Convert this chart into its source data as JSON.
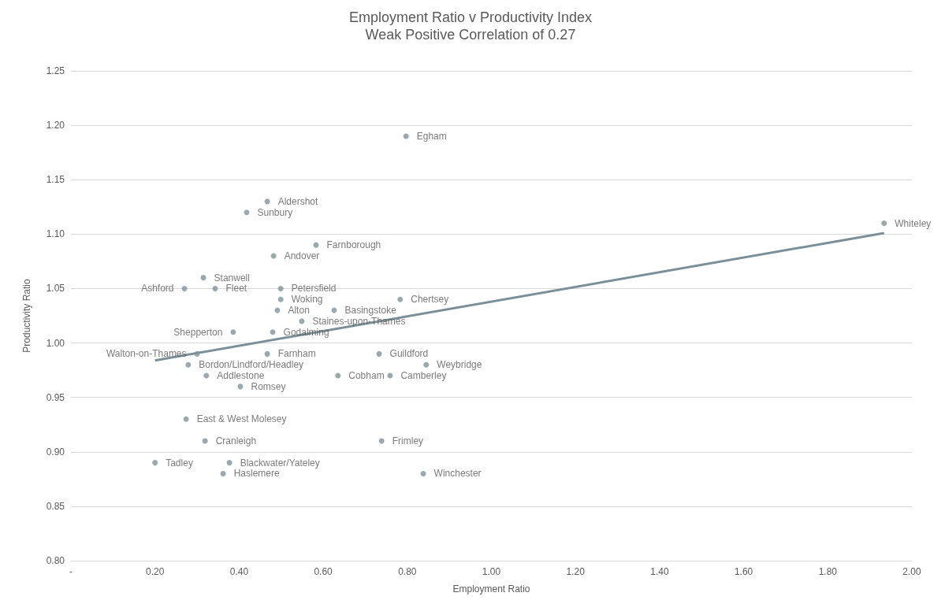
{
  "chart_data": {
    "type": "scatter",
    "title": "Employment Ratio v Productivity Index",
    "subtitle": "Weak Positive Correlation of 0.27",
    "xlabel": "Employment Ratio",
    "ylabel": "Productivity Ratio",
    "xlim": [
      0,
      2
    ],
    "xticks": [
      {
        "value": 0,
        "label": "-"
      },
      {
        "value": 0.2,
        "label": "0.20"
      },
      {
        "value": 0.4,
        "label": "0.40"
      },
      {
        "value": 0.6,
        "label": "0.60"
      },
      {
        "value": 0.8,
        "label": "0.80"
      },
      {
        "value": 1.0,
        "label": "1.00"
      },
      {
        "value": 1.2,
        "label": "1.20"
      },
      {
        "value": 1.4,
        "label": "1.40"
      },
      {
        "value": 1.6,
        "label": "1.60"
      },
      {
        "value": 1.8,
        "label": "1.80"
      },
      {
        "value": 2.0,
        "label": "2.00"
      }
    ],
    "ylim": [
      0.8,
      1.25
    ],
    "yticks": [
      {
        "value": 0.8,
        "label": "0.80"
      },
      0.85,
      {
        "value": 0.9,
        "label": "0.90"
      },
      0.95,
      {
        "value": 1.0,
        "label": "1.00"
      },
      1.05,
      {
        "value": 1.1,
        "label": "1.10"
      },
      1.15,
      {
        "value": 1.2,
        "label": "1.20"
      },
      1.25
    ],
    "grid": "y",
    "marker": "circle",
    "series": [
      {
        "color": "#7f939b",
        "x": [
          0.797,
          0.467,
          0.418,
          0.583,
          0.482,
          1.934,
          0.315,
          0.27,
          0.343,
          0.499,
          0.499,
          0.783,
          0.491,
          0.626,
          0.549,
          0.386,
          0.48,
          0.3,
          0.467,
          0.733,
          0.279,
          0.845,
          0.322,
          0.635,
          0.759,
          0.403,
          0.274,
          0.319,
          0.739,
          0.2,
          0.377,
          0.362,
          0.838
        ],
        "values": [
          1.19,
          1.13,
          1.12,
          1.09,
          1.08,
          1.11,
          1.06,
          1.05,
          1.05,
          1.05,
          1.04,
          1.04,
          1.03,
          1.03,
          1.02,
          1.01,
          1.01,
          0.99,
          0.99,
          0.99,
          0.98,
          0.98,
          0.97,
          0.97,
          0.97,
          0.96,
          0.93,
          0.91,
          0.91,
          0.89,
          0.89,
          0.88,
          0.88
        ]
      },
      {
        "type": "line",
        "color": "#7b8f98",
        "marker": "none",
        "line_style": "solid",
        "x": [
          0.2,
          1.934
        ],
        "values": [
          0.984,
          1.101
        ]
      }
    ],
    "annotations": [
      {
        "text": "Egham",
        "x": 0.797,
        "y": 1.19
      },
      {
        "text": "Aldershot",
        "x": 0.467,
        "y": 1.13
      },
      {
        "text": "Sunbury",
        "x": 0.418,
        "y": 1.12
      },
      {
        "text": "Farnborough",
        "x": 0.583,
        "y": 1.09
      },
      {
        "text": "Andover",
        "x": 0.482,
        "y": 1.08
      },
      {
        "text": "Whiteley",
        "x": 1.934,
        "y": 1.11
      },
      {
        "text": "Stanwell",
        "x": 0.315,
        "y": 1.06
      },
      {
        "text": "Ashford",
        "x": 0.27,
        "y": 1.05
      },
      {
        "text": "Fleet",
        "x": 0.343,
        "y": 1.05
      },
      {
        "text": "Petersfield",
        "x": 0.499,
        "y": 1.05
      },
      {
        "text": "Woking",
        "x": 0.499,
        "y": 1.04
      },
      {
        "text": "Chertsey",
        "x": 0.783,
        "y": 1.04
      },
      {
        "text": "Alton",
        "x": 0.491,
        "y": 1.03
      },
      {
        "text": "Basingstoke",
        "x": 0.626,
        "y": 1.03
      },
      {
        "text": "Staines-upon-Thames",
        "x": 0.549,
        "y": 1.02
      },
      {
        "text": "Shepperton",
        "x": 0.386,
        "y": 1.01
      },
      {
        "text": "Godalming",
        "x": 0.48,
        "y": 1.01
      },
      {
        "text": "Walton-on-Thames",
        "x": 0.3,
        "y": 0.99
      },
      {
        "text": "Farnham",
        "x": 0.467,
        "y": 0.99
      },
      {
        "text": "Guildford",
        "x": 0.733,
        "y": 0.99
      },
      {
        "text": "Bordon/Lindford/Headley",
        "x": 0.279,
        "y": 0.98
      },
      {
        "text": "Weybridge",
        "x": 0.845,
        "y": 0.98
      },
      {
        "text": "Addlestone",
        "x": 0.322,
        "y": 0.97
      },
      {
        "text": "Cobham",
        "x": 0.635,
        "y": 0.97
      },
      {
        "text": "Camberley",
        "x": 0.759,
        "y": 0.97
      },
      {
        "text": "Romsey",
        "x": 0.403,
        "y": 0.96
      },
      {
        "text": "East & West Molesey",
        "x": 0.274,
        "y": 0.93
      },
      {
        "text": "Cranleigh",
        "x": 0.319,
        "y": 0.91
      },
      {
        "text": "Frimley",
        "x": 0.739,
        "y": 0.91
      },
      {
        "text": "Tadley",
        "x": 0.2,
        "y": 0.89
      },
      {
        "text": "Blackwater/Yateley",
        "x": 0.377,
        "y": 0.89
      },
      {
        "text": "Haslemere",
        "x": 0.362,
        "y": 0.88
      },
      {
        "text": "Winchester",
        "x": 0.838,
        "y": 0.88
      }
    ]
  }
}
